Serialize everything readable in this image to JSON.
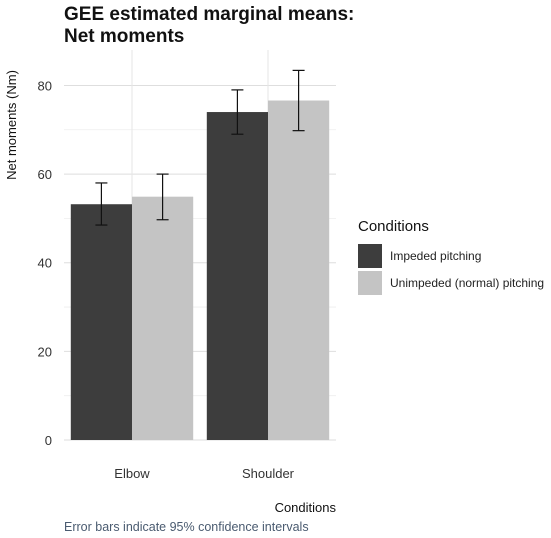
{
  "chart_data": {
    "type": "bar",
    "title_lines": [
      "GEE estimated marginal means:",
      "Net moments"
    ],
    "xlabel": "Conditions",
    "ylabel": "Net moments (Nm)",
    "caption": "Error bars indicate 95% confidence intervals",
    "categories": [
      "Elbow",
      "Shoulder"
    ],
    "ylim": [
      0,
      88
    ],
    "yticks": [
      0,
      20,
      40,
      60,
      80
    ],
    "grid": true,
    "legend_title": "Conditions",
    "legend_position": "right",
    "series": [
      {
        "name": "Impeded pitching",
        "color": "#3d3d3d",
        "values": [
          53.2,
          74.0
        ],
        "ci_low": [
          48.5,
          69.0
        ],
        "ci_high": [
          58.0,
          79.0
        ]
      },
      {
        "name": "Unimpeded (normal) pitching",
        "color": "#c4c4c4",
        "values": [
          54.9,
          76.6
        ],
        "ci_low": [
          49.7,
          69.8
        ],
        "ci_high": [
          60.0,
          83.4
        ]
      }
    ]
  }
}
